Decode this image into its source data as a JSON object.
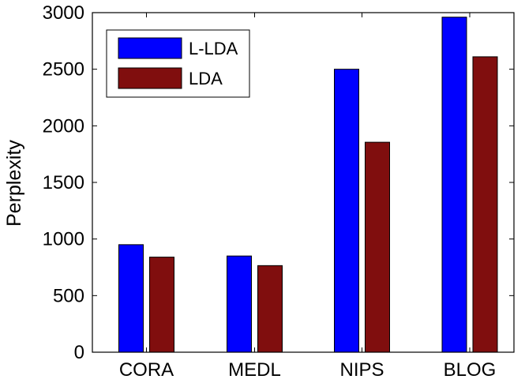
{
  "chart_data": {
    "type": "bar",
    "title": "",
    "xlabel": "",
    "ylabel": "Perplexity",
    "categories": [
      "CORA",
      "MEDL",
      "NIPS",
      "BLOG"
    ],
    "series": [
      {
        "name": "L-LDA",
        "color": "#0000ff",
        "values": [
          950,
          850,
          2500,
          2960
        ]
      },
      {
        "name": "LDA",
        "color": "#800e0e",
        "values": [
          840,
          765,
          1855,
          2610
        ]
      }
    ],
    "ylim": [
      0,
      3000
    ],
    "yticks": [
      0,
      500,
      1000,
      1500,
      2000,
      2500,
      3000
    ],
    "grid": false,
    "legend": {
      "position": "top-left"
    }
  }
}
